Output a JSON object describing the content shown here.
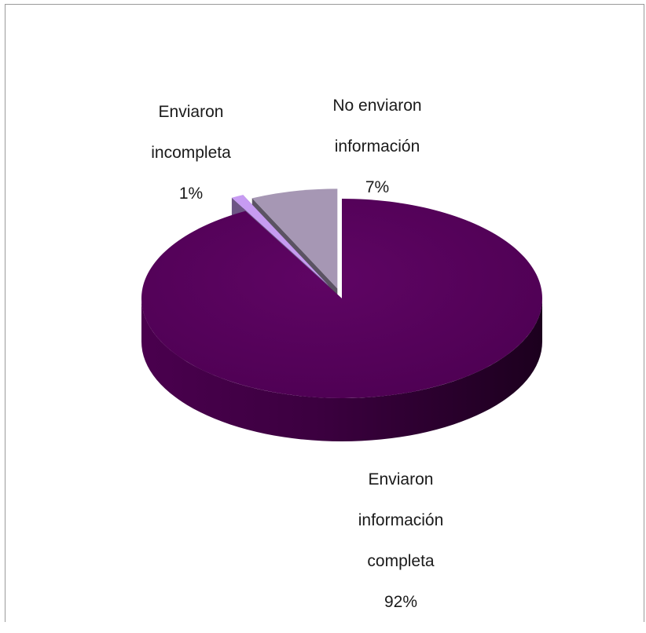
{
  "chart_data": {
    "type": "pie",
    "style": "3d-exploded",
    "slices": [
      {
        "label_lines": [
          "Enviaron",
          "información",
          "completa"
        ],
        "value": 92,
        "value_label": "92%",
        "color": "#57005c"
      },
      {
        "label_lines": [
          "Enviaron",
          "incompleta"
        ],
        "value": 1,
        "value_label": "1%",
        "color": "#c79bf2"
      },
      {
        "label_lines": [
          "No enviaron",
          "información"
        ],
        "value": 7,
        "value_label": "7%",
        "color": "#a697b4"
      }
    ]
  }
}
